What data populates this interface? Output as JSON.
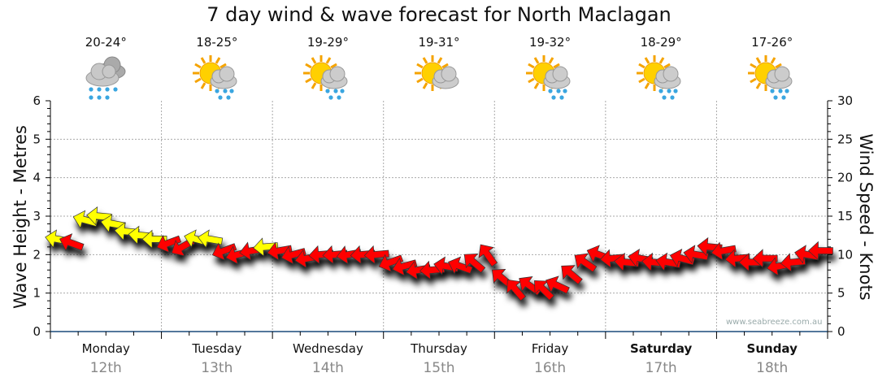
{
  "title": "7 day wind & wave forecast for North Maclagan",
  "left_axis_title": "Wave Height - Metres",
  "right_axis_title": "Wind Speed - Knots",
  "watermark": "www.seabreeze.com.au",
  "days": [
    {
      "name": "Monday",
      "date": "12th",
      "temp": "20-24°",
      "icon": "rain-cloud-icon",
      "bold": false
    },
    {
      "name": "Tuesday",
      "date": "13th",
      "temp": "18-25°",
      "icon": "sun-cloud-rain-icon",
      "bold": false
    },
    {
      "name": "Wednesday",
      "date": "14th",
      "temp": "19-29°",
      "icon": "sun-cloud-rain-icon",
      "bold": false
    },
    {
      "name": "Thursday",
      "date": "15th",
      "temp": "19-31°",
      "icon": "sun-cloud-icon",
      "bold": false
    },
    {
      "name": "Friday",
      "date": "16th",
      "temp": "19-32°",
      "icon": "sun-cloud-rain-icon",
      "bold": false
    },
    {
      "name": "Saturday",
      "date": "17th",
      "temp": "18-29°",
      "icon": "sun-cloud-rain-icon",
      "bold": true
    },
    {
      "name": "Sunday",
      "date": "18th",
      "temp": "17-26°",
      "icon": "sun-cloud-rain-icon",
      "bold": true
    }
  ],
  "chart_data": {
    "type": "scatter",
    "title": "7 day wind & wave forecast for North Maclagan",
    "ylabel": "Wave Height - Metres",
    "y2label": "Wind Speed - Knots",
    "ylim": [
      0,
      6
    ],
    "y2lim": [
      0,
      30
    ],
    "yticks": [
      "0",
      "1",
      "2",
      "3",
      "4",
      "5",
      "6"
    ],
    "y2ticks": [
      "0",
      "5",
      "10",
      "15",
      "20",
      "25",
      "30"
    ],
    "grid": true,
    "samples_per_day": 8,
    "colors": {
      "yellow": "#ffff00",
      "red": "#ff0000"
    },
    "wind_knots": [
      12,
      11.5,
      14.5,
      15,
      14,
      13,
      12.5,
      12,
      11.5,
      11,
      12,
      12,
      10.5,
      10,
      10.5,
      11,
      10.5,
      10,
      9.5,
      10,
      10,
      10,
      10,
      10,
      9,
      8.5,
      8,
      8,
      8.5,
      8.5,
      9,
      10,
      7,
      5.5,
      6,
      5.5,
      6,
      7.5,
      9,
      10,
      9.5,
      9,
      9.5,
      9,
      9,
      9.5,
      10,
      11,
      10.5,
      9.5,
      9,
      9.5,
      8.5,
      9,
      10,
      10.5
    ],
    "arrow_direction_deg": [
      190,
      200,
      195,
      185,
      190,
      185,
      185,
      180,
      160,
      150,
      195,
      190,
      160,
      165,
      170,
      175,
      170,
      165,
      170,
      175,
      175,
      170,
      175,
      175,
      160,
      165,
      170,
      175,
      190,
      200,
      220,
      235,
      220,
      230,
      215,
      225,
      205,
      220,
      215,
      200,
      175,
      185,
      190,
      185,
      190,
      195,
      190,
      185,
      170,
      175,
      180,
      180,
      170,
      175,
      190,
      180
    ],
    "arrow_color": [
      "yellow",
      "red",
      "yellow",
      "yellow",
      "yellow",
      "yellow",
      "yellow",
      "yellow",
      "red",
      "red",
      "yellow",
      "yellow",
      "red",
      "red",
      "red",
      "yellow",
      "red",
      "red",
      "red",
      "red",
      "red",
      "red",
      "red",
      "red",
      "red",
      "red",
      "red",
      "red",
      "red",
      "red",
      "red",
      "red",
      "red",
      "red",
      "red",
      "red",
      "red",
      "red",
      "red",
      "red",
      "red",
      "red",
      "red",
      "red",
      "red",
      "red",
      "red",
      "red",
      "red",
      "red",
      "red",
      "red",
      "red",
      "red",
      "red",
      "red"
    ]
  }
}
